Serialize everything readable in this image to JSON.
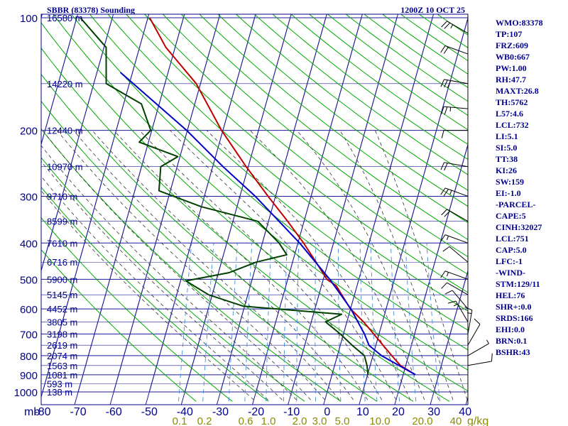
{
  "chart_data": {
    "type": "skew-t log-p sounding",
    "title": "SBBR (83378) Sounding",
    "valid_time": "1200Z 10 OCT 25",
    "pressure_axis": {
      "unit_label": "mb",
      "ticks": [
        100,
        200,
        300,
        400,
        500,
        600,
        700,
        800,
        900,
        1000
      ],
      "range": [
        100,
        1000
      ],
      "scale": "log"
    },
    "temperature_axis": {
      "unit_label": "C",
      "ticks": [
        -80,
        -70,
        -60,
        -50,
        -40,
        -30,
        -20,
        -10,
        0,
        10,
        20,
        30,
        40
      ],
      "tick_labels": [
        "-80",
        "-70",
        "-60",
        "-50",
        "-40",
        "-30",
        "-20",
        "-10",
        "0",
        "10",
        "20",
        "30",
        "40"
      ],
      "skew": true
    },
    "mixing_ratio_axis": {
      "unit_label": "g/kg",
      "labels": [
        "0.1",
        "0.2",
        "0.6",
        "1.0",
        "2.0",
        "3.0",
        "5.0",
        "10.0",
        "20.0",
        "40"
      ]
    },
    "height_labels": [
      {
        "p": 100,
        "label": "16580 m"
      },
      {
        "p": 150,
        "label": "14220 m"
      },
      {
        "p": 200,
        "label": "12440 m"
      },
      {
        "p": 250,
        "label": "10970 m"
      },
      {
        "p": 300,
        "label": "9710 m"
      },
      {
        "p": 350,
        "label": "8599 m"
      },
      {
        "p": 400,
        "label": "7610 m"
      },
      {
        "p": 450,
        "label": "6716 m"
      },
      {
        "p": 500,
        "label": "5900 m"
      },
      {
        "p": 550,
        "label": "5145 m"
      },
      {
        "p": 600,
        "label": "4452 m"
      },
      {
        "p": 650,
        "label": "3805 m"
      },
      {
        "p": 700,
        "label": "3198 m"
      },
      {
        "p": 750,
        "label": "2619 m"
      },
      {
        "p": 800,
        "label": "2074 m"
      },
      {
        "p": 850,
        "label": "1563 m"
      },
      {
        "p": 900,
        "label": "1081 m"
      },
      {
        "p": 950,
        "label": "593 m"
      },
      {
        "p": 1000,
        "label": "138 m"
      }
    ],
    "series": [
      {
        "name": "temperature",
        "color": "#c00000",
        "points": [
          {
            "p": 899,
            "t": 23.4
          },
          {
            "p": 850,
            "t": 18.5
          },
          {
            "p": 800,
            "t": 15.3
          },
          {
            "p": 750,
            "t": 12.0
          },
          {
            "p": 700,
            "t": 8.5
          },
          {
            "p": 650,
            "t": 4.7
          },
          {
            "p": 600,
            "t": 0.0
          },
          {
            "p": 550,
            "t": -3.6
          },
          {
            "p": 520,
            "t": -5.9
          },
          {
            "p": 500,
            "t": -9.0
          },
          {
            "p": 450,
            "t": -13.4
          },
          {
            "p": 400,
            "t": -18.4
          },
          {
            "p": 350,
            "t": -24.6
          },
          {
            "p": 300,
            "t": -32.1
          },
          {
            "p": 250,
            "t": -40.6
          },
          {
            "p": 200,
            "t": -50.4
          },
          {
            "p": 150,
            "t": -61.2
          },
          {
            "p": 120,
            "t": -72.6
          },
          {
            "p": 100,
            "t": -79.5
          }
        ]
      },
      {
        "name": "dewpoint",
        "color": "#004000",
        "points": [
          {
            "p": 899,
            "t": 10.1
          },
          {
            "p": 850,
            "t": 9.1
          },
          {
            "p": 800,
            "t": 7.6
          },
          {
            "p": 750,
            "t": 3.3
          },
          {
            "p": 700,
            "t": -0.9
          },
          {
            "p": 650,
            "t": -6.0
          },
          {
            "p": 620,
            "t": -2.1
          },
          {
            "p": 590,
            "t": -30.4
          },
          {
            "p": 550,
            "t": -41.0
          },
          {
            "p": 505,
            "t": -48.5
          },
          {
            "p": 480,
            "t": -37.0
          },
          {
            "p": 450,
            "t": -30.2
          },
          {
            "p": 430,
            "t": -22.2
          },
          {
            "p": 400,
            "t": -25.3
          },
          {
            "p": 350,
            "t": -33.0
          },
          {
            "p": 320,
            "t": -50.0
          },
          {
            "p": 290,
            "t": -63.2
          },
          {
            "p": 250,
            "t": -64.6
          },
          {
            "p": 235,
            "t": -60.6
          },
          {
            "p": 215,
            "t": -72.6
          },
          {
            "p": 200,
            "t": -70.3
          },
          {
            "p": 170,
            "t": -75.0
          },
          {
            "p": 150,
            "t": -86.5
          },
          {
            "p": 120,
            "t": -89.4
          },
          {
            "p": 100,
            "t": -99.0
          }
        ]
      },
      {
        "name": "parcel",
        "color": "#0000c8",
        "points": [
          {
            "p": 899,
            "t": 23.4
          },
          {
            "p": 800,
            "t": 12.4
          },
          {
            "p": 751,
            "t": 8.1
          },
          {
            "p": 700,
            "t": 5.9
          },
          {
            "p": 650,
            "t": 3.1
          },
          {
            "p": 600,
            "t": 0.1
          },
          {
            "p": 500,
            "t": -8.2
          },
          {
            "p": 400,
            "t": -19.5
          },
          {
            "p": 300,
            "t": -35.7
          },
          {
            "p": 250,
            "t": -47.1
          },
          {
            "p": 200,
            "t": -60.2
          },
          {
            "p": 150,
            "t": -78.9
          },
          {
            "p": 140,
            "t": -83.4
          }
        ]
      }
    ],
    "wind_barbs": [
      {
        "p": 110,
        "dir": 300,
        "spd": 25
      },
      {
        "p": 125,
        "dir": 290,
        "spd": 20
      },
      {
        "p": 150,
        "dir": 280,
        "spd": 30
      },
      {
        "p": 175,
        "dir": 275,
        "spd": 25
      },
      {
        "p": 200,
        "dir": 270,
        "spd": 10
      },
      {
        "p": 250,
        "dir": 280,
        "spd": 20
      },
      {
        "p": 300,
        "dir": 290,
        "spd": 25
      },
      {
        "p": 350,
        "dir": 300,
        "spd": 20
      },
      {
        "p": 400,
        "dir": 290,
        "spd": 15
      },
      {
        "p": 450,
        "dir": 310,
        "spd": 10
      },
      {
        "p": 500,
        "dir": 290,
        "spd": 15
      },
      {
        "p": 550,
        "dir": 300,
        "spd": 10
      },
      {
        "p": 600,
        "dir": 320,
        "spd": 10
      },
      {
        "p": 650,
        "dir": 330,
        "spd": 15
      },
      {
        "p": 700,
        "dir": 10,
        "spd": 15
      },
      {
        "p": 750,
        "dir": 30,
        "spd": 10
      },
      {
        "p": 800,
        "dir": 60,
        "spd": 5
      },
      {
        "p": 850,
        "dir": 80,
        "spd": 10
      }
    ],
    "colors": {
      "frame": "#00008b",
      "isobar": "#1c1c9c",
      "isotherm": "#1c1c9c",
      "dry_adiabat": "#00aa00",
      "moist_adiabat": "#333333",
      "mixing_ratio": "#3c8cd8",
      "temperature": "#c00000",
      "dewpoint": "#004000",
      "parcel": "#0000c8",
      "mixing_label": "#8b8b00"
    }
  },
  "station_stats": [
    "WMO:83378",
    "TP:107",
    "FRZ:609",
    "WB0:667",
    "PW:1.00",
    "RH:47.7",
    "MAXT:26.8",
    "TH:5762",
    "L57:4.6",
    "LCL:732",
    "LI:5.1",
    "SI:5.0",
    "TT:38",
    "KI:26",
    "SW:159",
    "EI:-1.0",
    "-PARCEL-",
    "CAPE:5",
    "CINH:32027",
    "LCL:751",
    "CAP:5.0",
    "LFC:-1",
    "-WIND-",
    "STM:129/11",
    "HEL:76",
    "SHR+:0.0",
    "SRDS:166",
    "EHI:0.0",
    "BRN:0.1",
    "BSHR:43"
  ]
}
